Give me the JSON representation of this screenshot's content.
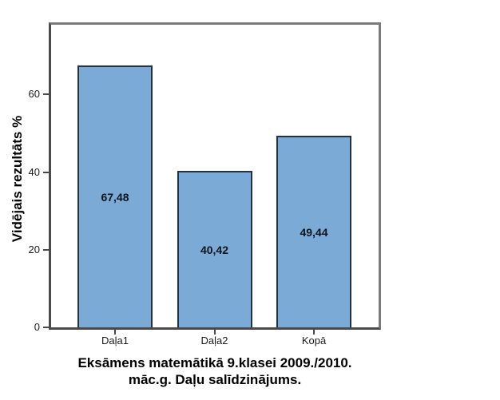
{
  "chart_data": {
    "type": "bar",
    "title": "Eksāmens matemātikā 9.klasei 2009./2010. māc.g. Daļu salīdzinājums.",
    "title_lines": [
      "Eksāmens matemātikā 9.klasei 2009./2010.",
      "māc.g. Daļu salīdzinājums."
    ],
    "ylabel": "Vidējais rezultāts %",
    "xlabel": "",
    "categories": [
      "Daļa1",
      "Daļa2",
      "Kopā"
    ],
    "values": [
      67.48,
      40.42,
      49.44
    ],
    "value_labels": [
      "67,48",
      "40,42",
      "49,44"
    ],
    "yticks": [
      0,
      20,
      40,
      60
    ],
    "ylim": [
      0,
      78
    ],
    "grid": false,
    "legend": "none",
    "colors": {
      "bar_fill": "#7AAAD5",
      "bar_border": "#233240",
      "axis_line": "#4A4A4A",
      "frame_line": "#7A7A7A",
      "background": "#FFFFFF",
      "text": "#000000"
    }
  }
}
